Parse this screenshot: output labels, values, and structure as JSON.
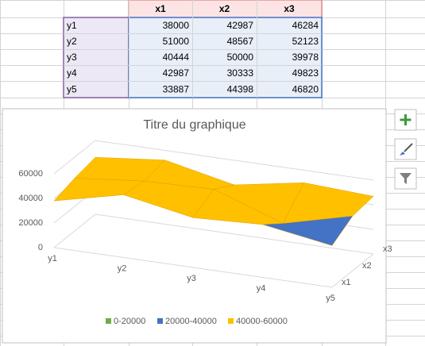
{
  "table": {
    "columns": [
      "x1",
      "x2",
      "x3"
    ],
    "rows": [
      {
        "label": "y1",
        "values": [
          38000,
          42987,
          46284
        ]
      },
      {
        "label": "y2",
        "values": [
          51000,
          48567,
          52123
        ]
      },
      {
        "label": "y3",
        "values": [
          40444,
          50000,
          39978
        ]
      },
      {
        "label": "y4",
        "values": [
          42987,
          30333,
          49823
        ]
      },
      {
        "label": "y5",
        "values": [
          33887,
          44398,
          46820
        ]
      }
    ]
  },
  "chart_data": {
    "type": "surface",
    "title": "Titre du graphique",
    "categories": [
      "y1",
      "y2",
      "y3",
      "y4",
      "y5"
    ],
    "depth_categories": [
      "x1",
      "x2",
      "x3"
    ],
    "zlim": [
      0,
      60000
    ],
    "zticks": [
      0,
      20000,
      40000,
      60000
    ],
    "legend": [
      {
        "name": "0-20000",
        "color": "#70ad47"
      },
      {
        "name": "20000-40000",
        "color": "#4472c4"
      },
      {
        "name": "40000-60000",
        "color": "#ffc000"
      }
    ]
  }
}
